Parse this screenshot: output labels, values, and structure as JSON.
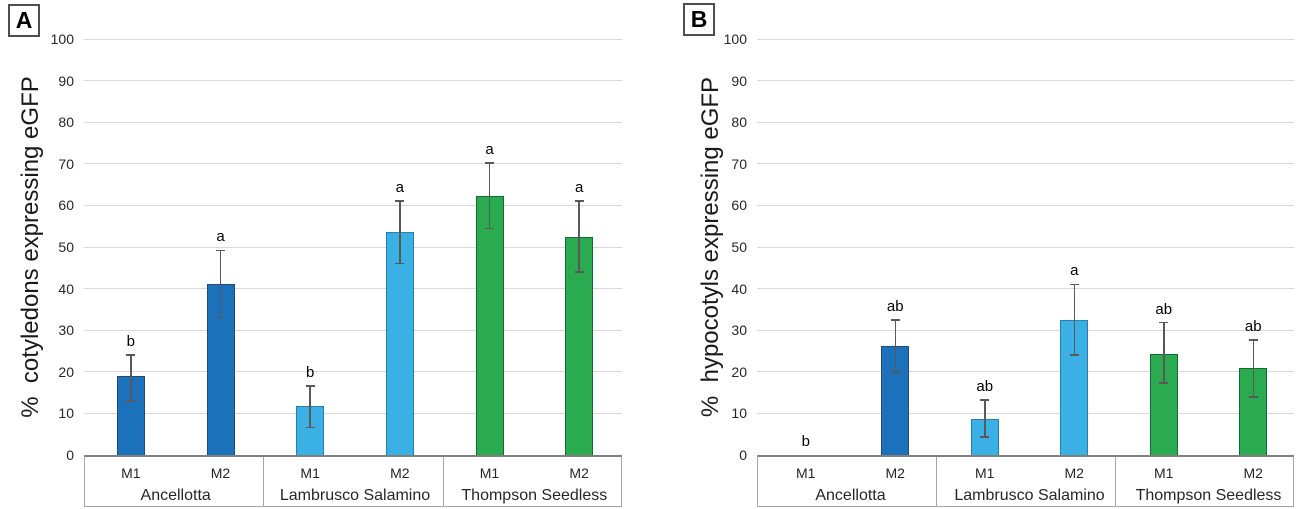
{
  "figure_title": "",
  "colors": {
    "dark_blue_fill": "#1b72ba",
    "dark_blue_border": "#27496e",
    "light_blue_fill": "#3bb0e4",
    "light_blue_border": "#2b7ea6",
    "green_fill": "#2aab4f",
    "green_border": "#156a31",
    "gridline": "#d9d9d9",
    "axis_line": "#7f7f7f",
    "error_bar": "#595959",
    "text": "#262626"
  },
  "chart_data": [
    {
      "type": "bar",
      "panel_label": "A",
      "title": "",
      "xlabel": "",
      "ylabel": "%  cotyledons expressing eGFP",
      "ylim": [
        0,
        100
      ],
      "ytick_step": 10,
      "grid": true,
      "legend": false,
      "group_labels": [
        "Ancellotta",
        "Lambrusco Salamino",
        "Thompson Seedless"
      ],
      "categories": [
        "M1",
        "M2",
        "M1",
        "M2",
        "M1",
        "M2"
      ],
      "values": [
        19.0,
        41.1,
        11.7,
        53.5,
        62.3,
        52.5
      ],
      "error_low": [
        13.0,
        33.1,
        6.6,
        46.0,
        54.5,
        44.0
      ],
      "error_high": [
        24.0,
        49.2,
        16.6,
        61.0,
        70.2,
        61.0
      ],
      "sig_letters": [
        "b",
        "a",
        "b",
        "a",
        "a",
        "a"
      ],
      "bar_fill_colors": [
        "#1b72ba",
        "#1b72ba",
        "#3bb0e4",
        "#3bb0e4",
        "#2aab4f",
        "#2aab4f"
      ],
      "bar_border_colors": [
        "#27496e",
        "#27496e",
        "#2b7ea6",
        "#2b7ea6",
        "#156a31",
        "#156a31"
      ]
    },
    {
      "type": "bar",
      "panel_label": "B",
      "title": "",
      "xlabel": "",
      "ylabel": "%  hypocotyls expressing eGFP",
      "ylim": [
        0,
        100
      ],
      "ytick_step": 10,
      "grid": true,
      "legend": false,
      "group_labels": [
        "Ancellotta",
        "Lambrusco Salamino",
        "Thompson Seedless"
      ],
      "categories": [
        "M1",
        "M2",
        "M1",
        "M2",
        "M1",
        "M2"
      ],
      "values": [
        0,
        26.1,
        8.7,
        32.5,
        24.3,
        20.8
      ],
      "error_low": [
        null,
        19.9,
        4.3,
        24.0,
        17.3,
        13.9
      ],
      "error_high": [
        null,
        32.4,
        13.2,
        41.0,
        31.8,
        27.7
      ],
      "sig_letters": [
        "b",
        "ab",
        "ab",
        "a",
        "ab",
        "ab"
      ],
      "bar_fill_colors": [
        "#1b72ba",
        "#1b72ba",
        "#3bb0e4",
        "#3bb0e4",
        "#2aab4f",
        "#2aab4f"
      ],
      "bar_border_colors": [
        "#27496e",
        "#27496e",
        "#2b7ea6",
        "#2b7ea6",
        "#156a31",
        "#156a31"
      ]
    }
  ]
}
